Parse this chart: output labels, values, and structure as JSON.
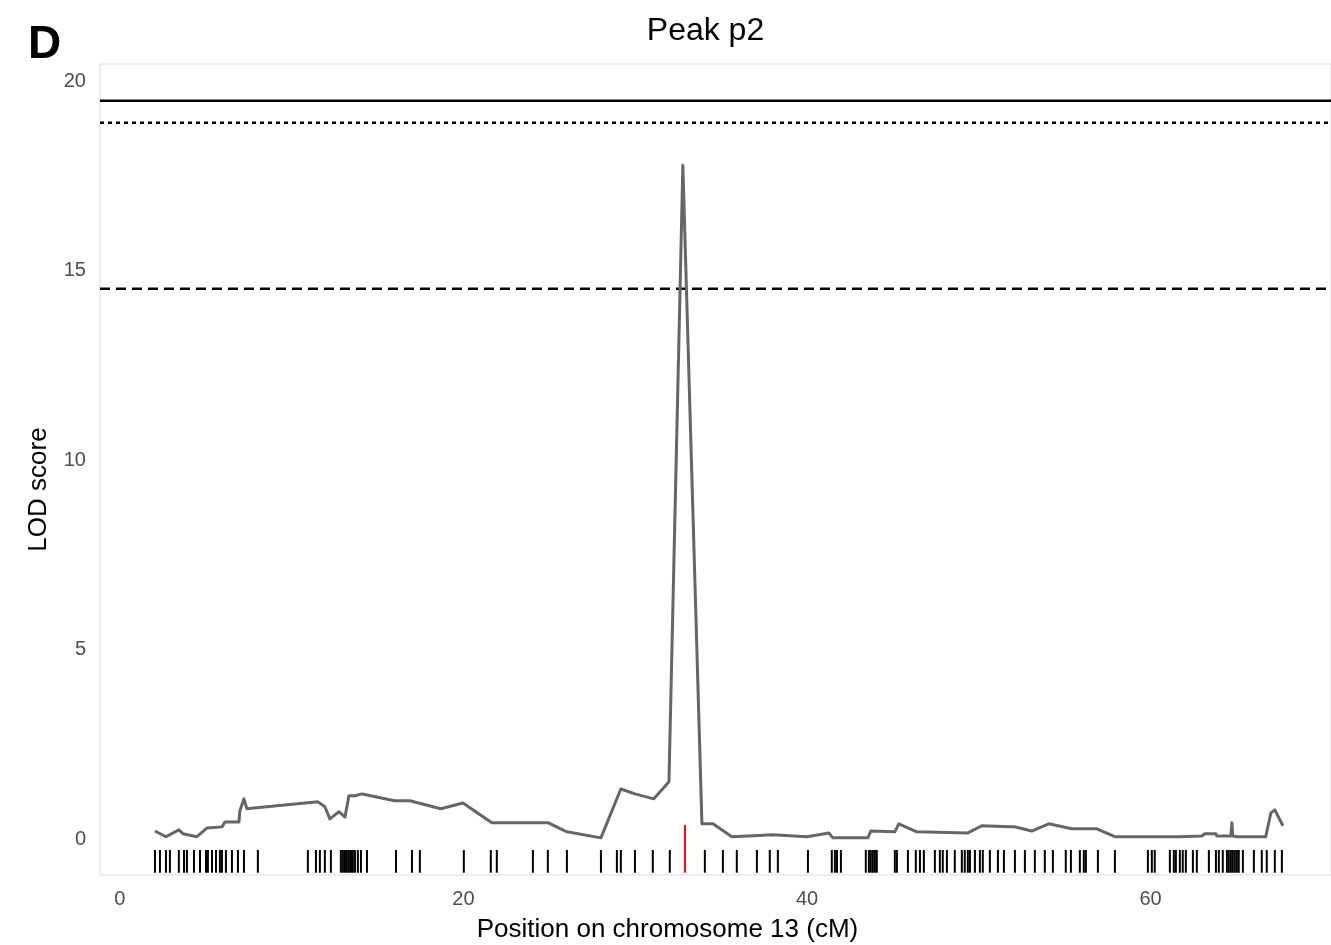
{
  "chart_data": {
    "type": "line",
    "title": "Peak p2",
    "xlabel": "Position on chromosome 13 (cM)",
    "ylabel": "LOD score",
    "annotations": [
      "D"
    ],
    "xlim": [
      -1.16,
      70.5
    ],
    "ylim": [
      -0.98,
      20.42
    ],
    "xticks": [
      0,
      20,
      40,
      60
    ],
    "yticks": [
      0,
      5,
      10,
      15,
      20
    ],
    "grid": false,
    "ref_lines": [
      {
        "axis": "y",
        "value": 19.45,
        "label": null,
        "color": "#000000",
        "line_style": "solid"
      },
      {
        "axis": "y",
        "value": 18.87,
        "label": null,
        "color": "#000000",
        "line_style": "dotted"
      },
      {
        "axis": "y",
        "value": 14.49,
        "label": null,
        "color": "#000000",
        "line_style": "dashed"
      }
    ],
    "series": [
      {
        "color": "#666666",
        "x": [
          2.04,
          2.68,
          3.43,
          3.67,
          4.48,
          5.06,
          5.94,
          6.11,
          6.93,
          6.98,
          7.22,
          7.39,
          11.53,
          11.93,
          12.22,
          12.75,
          13.1,
          13.33,
          13.68,
          14.09,
          14.38,
          15.98,
          16.88,
          18.68,
          19.97,
          21.65,
          24.91,
          26.02,
          28.0,
          29.16,
          29.98,
          31.08,
          31.96,
          32.77,
          33.88,
          34.34,
          34.52,
          35.62,
          38.01,
          39.99,
          41.27,
          41.5,
          43.54,
          43.71,
          45.11,
          45.34,
          46.39,
          49.36,
          50.17,
          51.8,
          52.1,
          53.08,
          54.07,
          55.41,
          56.87,
          57.92,
          61.7,
          62.98,
          63.15,
          63.8,
          63.85,
          64.67,
          64.73,
          64.78,
          65.02,
          66.7,
          67.0,
          67.23,
          67.7
        ],
        "values": [
          0.18,
          0.03,
          0.21,
          0.11,
          0.03,
          0.26,
          0.29,
          0.42,
          0.42,
          0.71,
          1.03,
          0.77,
          0.95,
          0.82,
          0.5,
          0.69,
          0.55,
          1.11,
          1.11,
          1.16,
          1.13,
          0.98,
          0.98,
          0.77,
          0.92,
          0.4,
          0.4,
          0.16,
          0.0,
          1.29,
          1.16,
          1.03,
          1.48,
          17.75,
          0.37,
          0.37,
          0.37,
          0.03,
          0.08,
          0.03,
          0.13,
          0.0,
          0.0,
          0.18,
          0.16,
          0.37,
          0.16,
          0.13,
          0.32,
          0.29,
          0.29,
          0.18,
          0.37,
          0.24,
          0.24,
          0.03,
          0.03,
          0.05,
          0.11,
          0.11,
          0.05,
          0.05,
          0.4,
          0.05,
          0.03,
          0.03,
          0.66,
          0.74,
          0.32
        ]
      },
      {
        "type": "bar",
        "color": "#000000",
        "base": [
          -0.92,
          -0.92,
          -0.92,
          -0.92,
          -0.92,
          -0.92,
          -0.92,
          -0.92,
          -0.92,
          -0.92,
          -0.92,
          -0.92,
          -0.92,
          -0.92,
          -0.92,
          -0.92,
          -0.92,
          -0.92,
          -0.92,
          -0.92,
          -0.92,
          -0.92,
          -0.92,
          -0.92,
          -0.92,
          -0.92,
          -0.92,
          -0.92,
          -0.92,
          -0.92,
          -0.92,
          -0.92,
          -0.92,
          -0.92,
          -0.92,
          -0.92,
          -0.92,
          -0.92,
          -0.92,
          -0.92,
          -0.92,
          -0.92,
          -0.92,
          -0.92,
          -0.92,
          -0.92,
          -0.92,
          -0.92,
          -0.92,
          -0.92,
          -0.92,
          -0.92,
          -0.92,
          -0.92,
          -0.92,
          -0.92,
          -0.92,
          -0.92,
          -0.92,
          -0.92,
          -0.92,
          -0.92,
          -0.92,
          -0.92,
          -0.92,
          -0.92,
          -0.92,
          -0.92,
          -0.92,
          -0.92,
          -0.92,
          -0.92,
          -0.92,
          -0.92,
          -0.92,
          -0.92,
          -0.92,
          -0.92,
          -0.92,
          -0.92,
          -0.92,
          -0.92,
          -0.92,
          -0.92,
          -0.92,
          -0.92,
          -0.92,
          -0.92,
          -0.92,
          -0.92,
          -0.92,
          -0.92,
          -0.92,
          -0.92,
          -0.92,
          -0.92,
          -0.92,
          -0.92,
          -0.92,
          -0.92,
          -0.92,
          -0.92,
          -0.92,
          -0.92,
          -0.92,
          -0.92,
          -0.92,
          -0.92,
          -0.92,
          -0.92,
          -0.92,
          -0.92,
          -0.92,
          -0.92,
          -0.92,
          -0.92,
          -0.92,
          -0.92,
          -0.92,
          -0.92,
          -0.92,
          -0.92,
          -0.92,
          -0.92,
          -0.92,
          -0.92,
          -0.92,
          -0.92,
          -0.92
        ],
        "x": [
          2.04,
          2.33,
          2.68,
          2.91,
          3.43,
          3.73,
          3.9,
          4.31,
          4.66,
          5.01,
          5.12,
          5.36,
          5.59,
          5.82,
          5.94,
          6.17,
          6.52,
          6.87,
          7.22,
          8.03,
          10.94,
          11.41,
          11.64,
          11.93,
          12.28,
          12.86,
          12.98,
          13.1,
          13.21,
          13.33,
          13.45,
          13.56,
          13.68,
          13.85,
          14.03,
          14.38,
          16.07,
          17.0,
          17.46,
          20.02,
          21.59,
          21.94,
          24.04,
          24.91,
          26.02,
          28.0,
          28.93,
          29.16,
          29.98,
          31.02,
          32.01,
          34.05,
          35.1,
          35.91,
          37.08,
          37.83,
          38.3,
          40.05,
          41.44,
          41.62,
          41.74,
          41.97,
          43.42,
          43.6,
          43.71,
          43.83,
          43.95,
          44.06,
          45.11,
          45.23,
          45.87,
          46.33,
          46.57,
          46.8,
          47.44,
          47.73,
          47.9,
          48.14,
          48.6,
          49.01,
          49.18,
          49.36,
          49.48,
          49.77,
          50.06,
          50.23,
          50.64,
          51.11,
          51.46,
          52.1,
          52.68,
          53.26,
          53.84,
          54.31,
          55.06,
          55.36,
          55.88,
          56.11,
          56.23,
          56.93,
          57.92,
          59.84,
          60.07,
          60.24,
          61.12,
          61.35,
          61.47,
          61.7,
          61.87,
          62.05,
          62.46,
          62.69,
          63.39,
          63.8,
          63.97,
          64.2,
          64.44,
          64.55,
          64.67,
          64.78,
          64.9,
          65.02,
          65.13,
          65.37,
          66.01,
          66.47,
          66.76,
          67.23,
          67.64
        ],
        "values": [
          0.6,
          0.6,
          0.6,
          0.6,
          0.6,
          0.6,
          0.6,
          0.6,
          0.6,
          0.6,
          0.6,
          0.6,
          0.6,
          0.6,
          0.6,
          0.6,
          0.6,
          0.6,
          0.6,
          0.6,
          0.6,
          0.6,
          0.6,
          0.6,
          0.6,
          0.6,
          0.6,
          0.6,
          0.6,
          0.6,
          0.6,
          0.6,
          0.6,
          0.6,
          0.6,
          0.6,
          0.6,
          0.6,
          0.6,
          0.6,
          0.6,
          0.6,
          0.6,
          0.6,
          0.6,
          0.6,
          0.6,
          0.6,
          0.6,
          0.6,
          0.6,
          0.6,
          0.6,
          0.6,
          0.6,
          0.6,
          0.6,
          0.6,
          0.6,
          0.6,
          0.6,
          0.6,
          0.6,
          0.6,
          0.6,
          0.6,
          0.6,
          0.6,
          0.6,
          0.6,
          0.6,
          0.6,
          0.6,
          0.6,
          0.6,
          0.6,
          0.6,
          0.6,
          0.6,
          0.6,
          0.6,
          0.6,
          0.6,
          0.6,
          0.6,
          0.6,
          0.6,
          0.6,
          0.6,
          0.6,
          0.6,
          0.6,
          0.6,
          0.6,
          0.6,
          0.6,
          0.6,
          0.6,
          0.6,
          0.6,
          0.6,
          0.6,
          0.6,
          0.6,
          0.6,
          0.6,
          0.6,
          0.6,
          0.6,
          0.6,
          0.6,
          0.6,
          0.6,
          0.6,
          0.6,
          0.6,
          0.6,
          0.6,
          0.6,
          0.6,
          0.6,
          0.6,
          0.6,
          0.6,
          0.6,
          0.6,
          0.6,
          0.6,
          0.6
        ]
      },
      {
        "type": "bar",
        "color": "#ff0000",
        "x": [
          32.89
        ],
        "base": [
          -0.92
        ],
        "values": [
          1.26
        ]
      }
    ]
  }
}
